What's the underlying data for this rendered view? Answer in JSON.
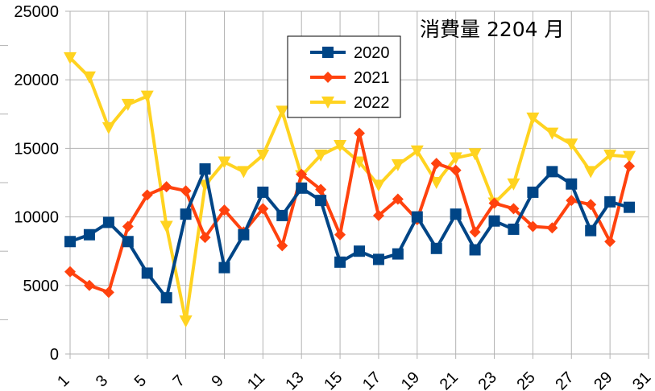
{
  "chart_data": {
    "type": "line",
    "title": "消費量 2204 月",
    "xlabel": "",
    "ylabel": "",
    "x": [
      1,
      2,
      3,
      4,
      5,
      6,
      7,
      8,
      9,
      10,
      11,
      12,
      13,
      14,
      15,
      16,
      17,
      18,
      19,
      20,
      21,
      22,
      23,
      24,
      25,
      26,
      27,
      28,
      29,
      30
    ],
    "xlim": [
      1,
      31
    ],
    "x_tick_labels": [
      "1",
      "3",
      "5",
      "7",
      "9",
      "11",
      "13",
      "15",
      "17",
      "19",
      "21",
      "23",
      "25",
      "27",
      "29",
      "31"
    ],
    "ylim": [
      0,
      25000
    ],
    "y_tick_labels": [
      "0",
      "5000",
      "10000",
      "15000",
      "20000",
      "25000"
    ],
    "grid": true,
    "legend_position": "top-center",
    "series": [
      {
        "name": "2020",
        "color": "#004586",
        "marker": "square",
        "values": [
          8200,
          8700,
          9600,
          8200,
          5900,
          4100,
          10200,
          13500,
          6300,
          8700,
          11800,
          10100,
          12100,
          11200,
          6700,
          7500,
          6900,
          7300,
          10000,
          7700,
          10200,
          7600,
          9700,
          9100,
          11800,
          13300,
          12400,
          9000,
          11100,
          10700
        ]
      },
      {
        "name": "2021",
        "color": "#ff420e",
        "marker": "diamond",
        "values": [
          6000,
          5000,
          4500,
          9300,
          11600,
          12200,
          11900,
          8500,
          10500,
          8900,
          10600,
          7900,
          13100,
          12000,
          8700,
          16100,
          10100,
          11300,
          9800,
          13900,
          13400,
          8900,
          11000,
          10600,
          9300,
          9200,
          11200,
          10900,
          8200,
          13700
        ]
      },
      {
        "name": "2022",
        "color": "#ffd320",
        "marker": "triangle-down",
        "values": [
          21600,
          20200,
          16500,
          18200,
          18800,
          9300,
          2400,
          12300,
          14000,
          13300,
          14500,
          17700,
          13000,
          14500,
          15200,
          14000,
          12300,
          13800,
          14800,
          12500,
          14300,
          14600,
          11000,
          12400,
          17200,
          16100,
          15300,
          13300,
          14500,
          14400
        ]
      }
    ]
  }
}
